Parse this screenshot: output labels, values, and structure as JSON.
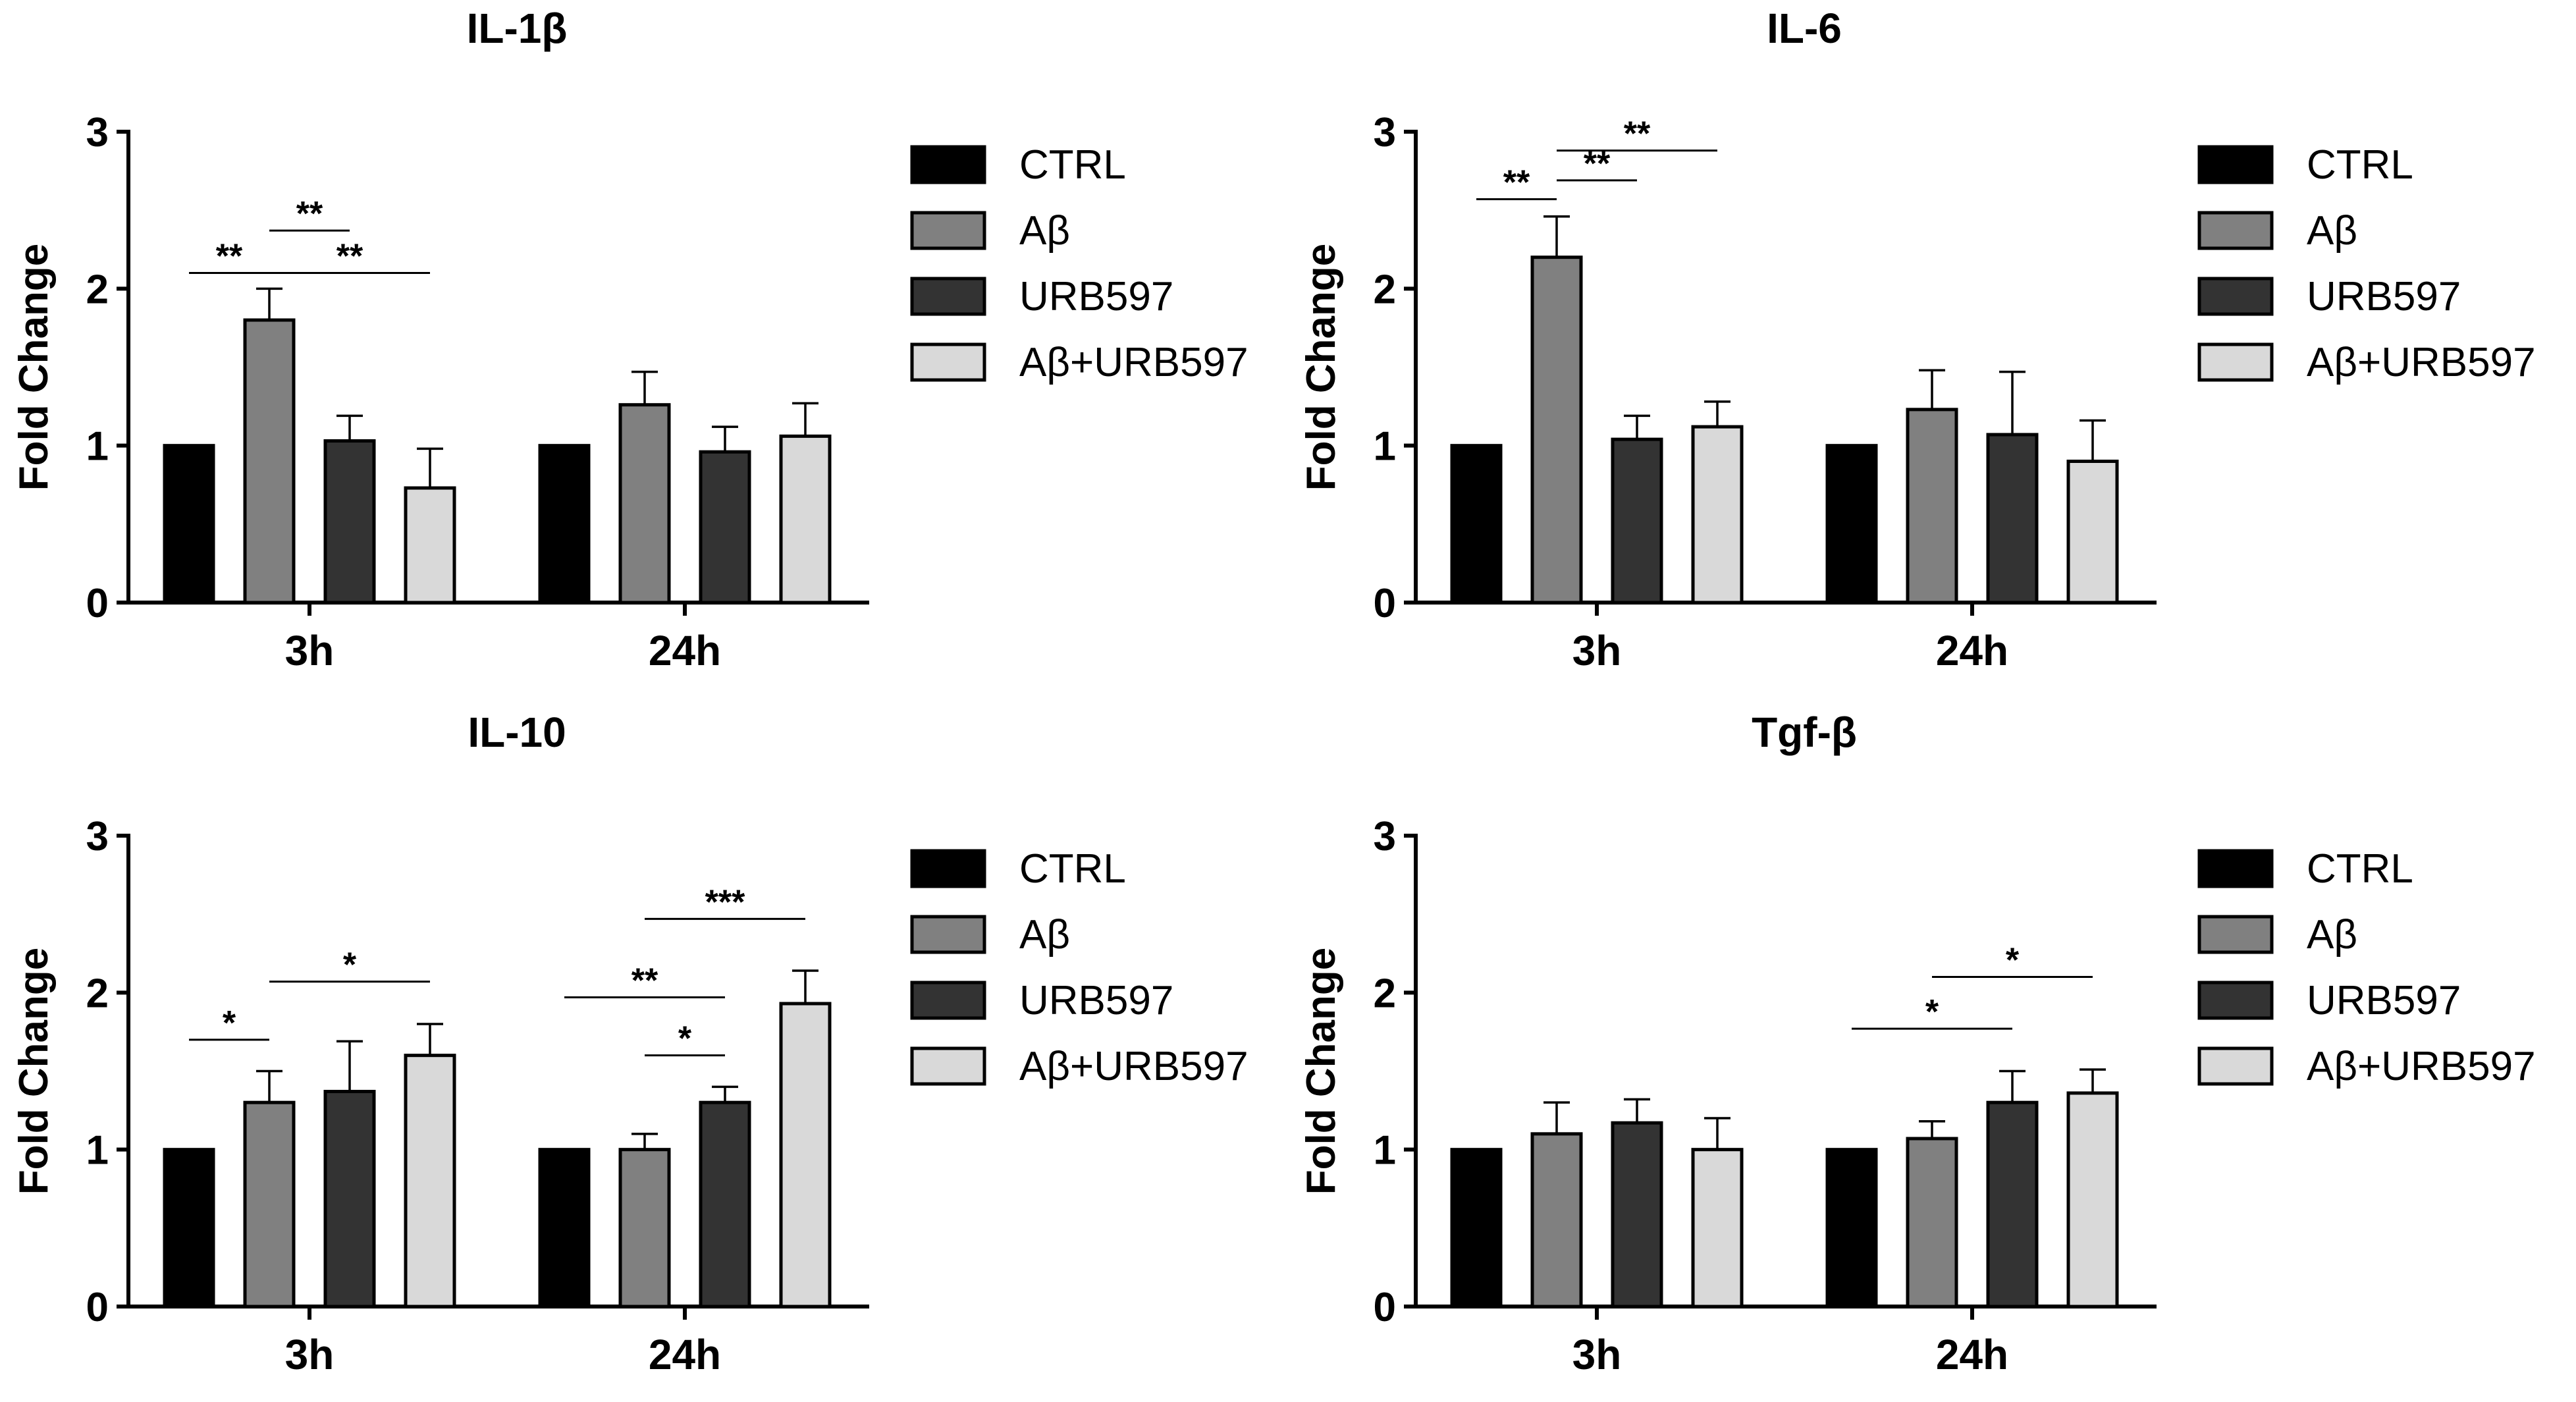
{
  "series_names": [
    "CTRL",
    "Aβ",
    "URB597",
    "Aβ+URB597"
  ],
  "series_colors": [
    "#000000",
    "#808080",
    "#333333",
    "#d9d9d9"
  ],
  "chart_data": [
    {
      "type": "bar",
      "title": "IL-1β",
      "ylabel": "Fold Change",
      "categories": [
        "3h",
        "24h"
      ],
      "ylim": [
        0,
        3
      ],
      "yticks": [
        "0",
        "1",
        "2",
        "3"
      ],
      "legend": "right",
      "series": [
        {
          "name": "CTRL",
          "values": [
            1.0,
            1.0
          ],
          "errors": [
            0,
            0
          ]
        },
        {
          "name": "Aβ",
          "values": [
            1.8,
            1.26
          ],
          "errors": [
            0.2,
            0.21
          ]
        },
        {
          "name": "URB597",
          "values": [
            1.03,
            0.96
          ],
          "errors": [
            0.16,
            0.16
          ]
        },
        {
          "name": "Aβ+URB597",
          "values": [
            0.73,
            1.06
          ],
          "errors": [
            0.25,
            0.21
          ]
        }
      ],
      "significance": [
        {
          "label": "**",
          "group": 0,
          "from": 0,
          "to": 1,
          "y": 2.1
        },
        {
          "label": "**",
          "group": 0,
          "from": 1,
          "to": 2,
          "y": 2.37
        },
        {
          "label": "**",
          "group": 0,
          "from": 1,
          "to": 3,
          "y": 2.1
        }
      ]
    },
    {
      "type": "bar",
      "title": "IL-6",
      "ylabel": "Fold Change",
      "categories": [
        "3h",
        "24h"
      ],
      "ylim": [
        0,
        3
      ],
      "yticks": [
        "0",
        "1",
        "2",
        "3"
      ],
      "legend": "right",
      "series": [
        {
          "name": "CTRL",
          "values": [
            1.0,
            1.0
          ],
          "errors": [
            0,
            0
          ]
        },
        {
          "name": "Aβ",
          "values": [
            2.2,
            1.23
          ],
          "errors": [
            0.26,
            0.25
          ]
        },
        {
          "name": "URB597",
          "values": [
            1.04,
            1.07
          ],
          "errors": [
            0.15,
            0.4
          ]
        },
        {
          "name": "Aβ+URB597",
          "values": [
            1.12,
            0.9
          ],
          "errors": [
            0.16,
            0.26
          ]
        }
      ],
      "significance": [
        {
          "label": "**",
          "group": 0,
          "from": 0,
          "to": 1,
          "y": 2.57
        },
        {
          "label": "**",
          "group": 0,
          "from": 1,
          "to": 2,
          "y": 2.69
        },
        {
          "label": "**",
          "group": 0,
          "from": 1,
          "to": 3,
          "y": 2.88
        }
      ]
    },
    {
      "type": "bar",
      "title": "IL-10",
      "ylabel": "Fold Change",
      "categories": [
        "3h",
        "24h"
      ],
      "ylim": [
        0,
        3
      ],
      "yticks": [
        "0",
        "1",
        "2",
        "3"
      ],
      "legend": "right",
      "series": [
        {
          "name": "CTRL",
          "values": [
            1.0,
            1.0
          ],
          "errors": [
            0,
            0
          ]
        },
        {
          "name": "Aβ",
          "values": [
            1.3,
            1.0
          ],
          "errors": [
            0.2,
            0.1
          ]
        },
        {
          "name": "URB597",
          "values": [
            1.37,
            1.3
          ],
          "errors": [
            0.32,
            0.1
          ]
        },
        {
          "name": "Aβ+URB597",
          "values": [
            1.6,
            1.93
          ],
          "errors": [
            0.2,
            0.21
          ]
        }
      ],
      "significance": [
        {
          "label": "*",
          "group": 0,
          "from": 0,
          "to": 1,
          "y": 1.7
        },
        {
          "label": "*",
          "group": 0,
          "from": 1,
          "to": 3,
          "y": 2.07
        },
        {
          "label": "**",
          "group": 1,
          "from": 0,
          "to": 2,
          "y": 1.97
        },
        {
          "label": "*",
          "group": 1,
          "from": 1,
          "to": 2,
          "y": 1.6
        },
        {
          "label": "***",
          "group": 1,
          "from": 1,
          "to": 3,
          "y": 2.47
        }
      ]
    },
    {
      "type": "bar",
      "title": "Tgf-β",
      "ylabel": "Fold Change",
      "categories": [
        "3h",
        "24h"
      ],
      "ylim": [
        0,
        3
      ],
      "yticks": [
        "0",
        "1",
        "2",
        "3"
      ],
      "legend": "right",
      "series": [
        {
          "name": "CTRL",
          "values": [
            1.0,
            1.0
          ],
          "errors": [
            0,
            0
          ]
        },
        {
          "name": "Aβ",
          "values": [
            1.1,
            1.07
          ],
          "errors": [
            0.2,
            0.11
          ]
        },
        {
          "name": "URB597",
          "values": [
            1.17,
            1.3
          ],
          "errors": [
            0.15,
            0.2
          ]
        },
        {
          "name": "Aβ+URB597",
          "values": [
            1.0,
            1.36
          ],
          "errors": [
            0.2,
            0.15
          ]
        }
      ],
      "significance": [
        {
          "label": "*",
          "group": 1,
          "from": 0,
          "to": 2,
          "y": 1.77
        },
        {
          "label": "*",
          "group": 1,
          "from": 1,
          "to": 3,
          "y": 2.1
        }
      ]
    }
  ]
}
